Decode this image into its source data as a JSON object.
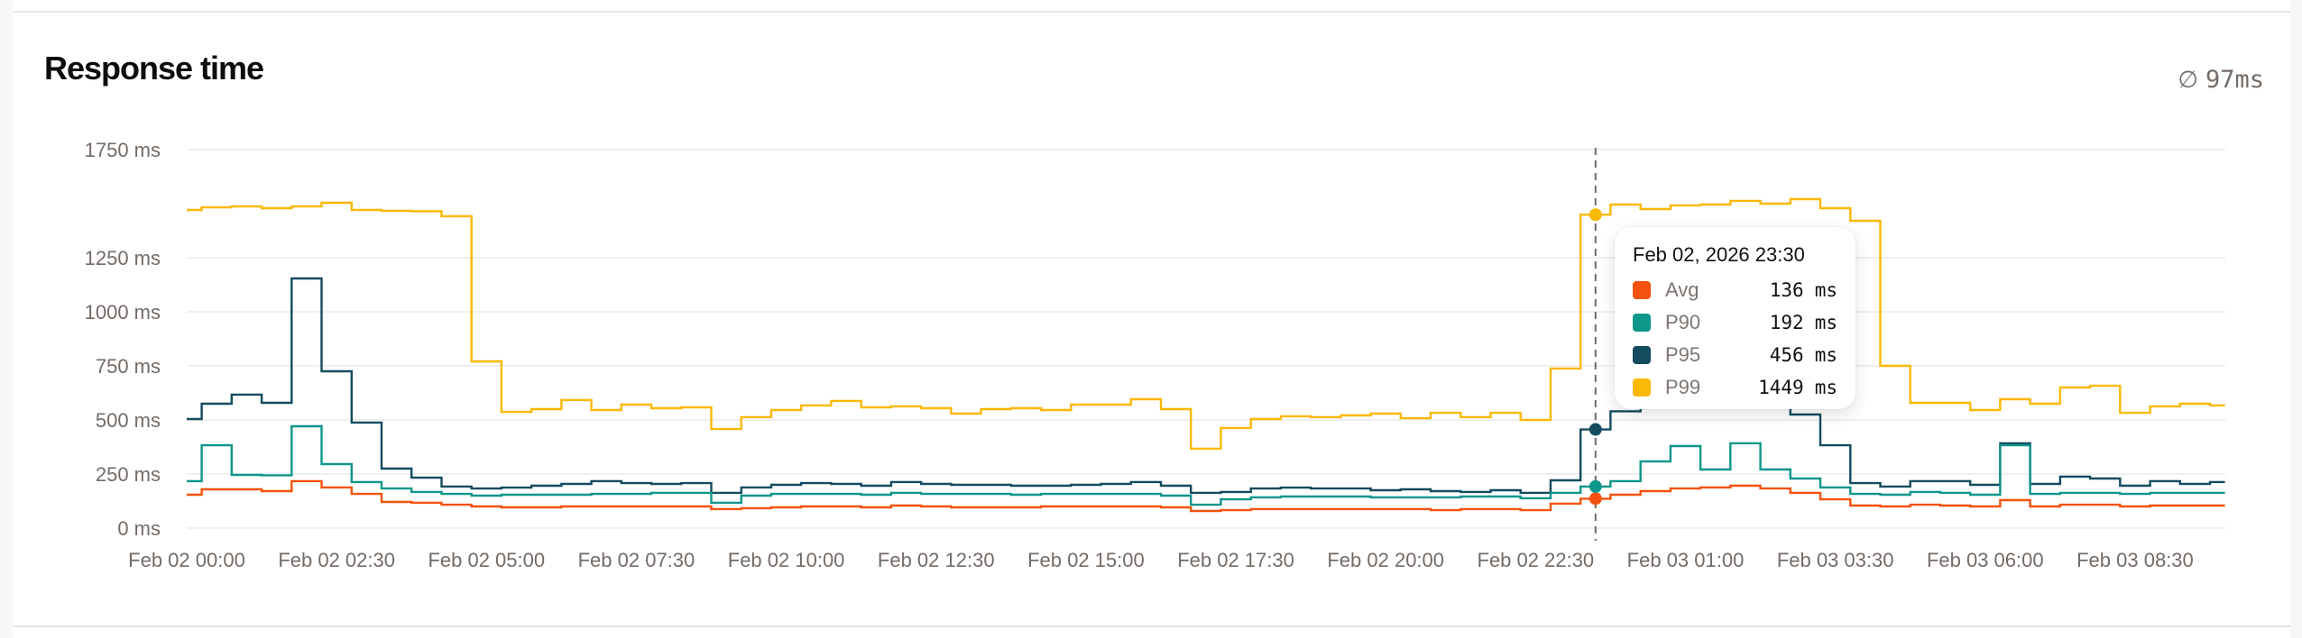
{
  "card": {
    "title": "Response time",
    "summary_symbol": "∅",
    "summary_value": "97ms"
  },
  "colors": {
    "avg": "#F4520E",
    "p90": "#0E968A",
    "p95": "#134B5F",
    "p99": "#FBB805",
    "grid": "#EFEFEF",
    "axis_text": "#736B66",
    "crosshair": "#6B6B6B"
  },
  "tooltip": {
    "title": "Feb 02, 2026 23:30",
    "rows": [
      {
        "name": "Avg",
        "value": "136",
        "unit": "ms",
        "color": "#F4520E"
      },
      {
        "name": "P90",
        "value": "192",
        "unit": "ms",
        "color": "#0E968A"
      },
      {
        "name": "P95",
        "value": "456",
        "unit": "ms",
        "color": "#134B5F"
      },
      {
        "name": "P99",
        "value": "1449",
        "unit": "ms",
        "color": "#FBB805"
      }
    ]
  },
  "chart_data": {
    "type": "line",
    "step": true,
    "title": "Response time",
    "xlabel": "",
    "ylabel": "",
    "ylim": [
      0,
      1750
    ],
    "y_ticks": [
      0,
      250,
      500,
      750,
      1000,
      1250,
      1750
    ],
    "y_tick_labels": [
      "0 ms",
      "250 ms",
      "500 ms",
      "750 ms",
      "1000 ms",
      "1250 ms",
      "1750 ms"
    ],
    "x_tick_labels": [
      "Feb 02 00:00",
      "Feb 02 02:30",
      "Feb 02 05:00",
      "Feb 02 07:30",
      "Feb 02 10:00",
      "Feb 02 12:30",
      "Feb 02 15:00",
      "Feb 02 17:30",
      "Feb 02 20:00",
      "Feb 02 22:30",
      "Feb 03 01:00",
      "Feb 03 03:30",
      "Feb 03 06:00",
      "Feb 03 08:30"
    ],
    "x_tick_every": 5,
    "interval": "30 min",
    "x_start": "Feb 02 00:00",
    "grid": true,
    "legend": "tooltip",
    "hover_index": 47,
    "series": [
      {
        "name": "Avg",
        "color": "#F4520E",
        "values": [
          154,
          179,
          179,
          171,
          217,
          188,
          158,
          121,
          117,
          108,
          100,
          96,
          96,
          100,
          100,
          100,
          100,
          100,
          88,
          92,
          96,
          100,
          100,
          96,
          104,
          100,
          96,
          96,
          96,
          100,
          100,
          100,
          100,
          96,
          79,
          83,
          88,
          88,
          88,
          88,
          88,
          88,
          83,
          88,
          88,
          83,
          113,
          136,
          154,
          171,
          183,
          188,
          196,
          183,
          163,
          133,
          104,
          100,
          108,
          104,
          100,
          129,
          100,
          108,
          108,
          100,
          104,
          104,
          104
        ]
      },
      {
        "name": "P90",
        "color": "#0E968A",
        "values": [
          217,
          383,
          246,
          244,
          471,
          296,
          213,
          183,
          167,
          158,
          150,
          154,
          154,
          154,
          158,
          158,
          163,
          163,
          117,
          150,
          158,
          158,
          158,
          154,
          163,
          158,
          158,
          158,
          154,
          158,
          158,
          158,
          158,
          150,
          108,
          133,
          142,
          146,
          146,
          146,
          142,
          142,
          142,
          146,
          146,
          138,
          163,
          192,
          217,
          308,
          379,
          271,
          392,
          271,
          229,
          188,
          158,
          154,
          167,
          163,
          154,
          383,
          158,
          163,
          163,
          158,
          163,
          163,
          163
        ]
      },
      {
        "name": "P95",
        "color": "#134B5F",
        "values": [
          504,
          575,
          617,
          579,
          1154,
          725,
          488,
          275,
          233,
          192,
          183,
          187,
          196,
          204,
          217,
          208,
          204,
          208,
          163,
          188,
          200,
          208,
          204,
          196,
          213,
          204,
          200,
          200,
          196,
          196,
          200,
          204,
          213,
          196,
          163,
          167,
          183,
          187,
          183,
          183,
          175,
          179,
          171,
          167,
          175,
          163,
          221,
          456,
          540,
          560,
          575,
          580,
          570,
          555,
          525,
          383,
          208,
          192,
          217,
          217,
          200,
          392,
          204,
          238,
          229,
          196,
          217,
          204,
          213
        ]
      },
      {
        "name": "P99",
        "color": "#FBB805",
        "values": [
          1471,
          1483,
          1487,
          1479,
          1487,
          1504,
          1471,
          1467,
          1465,
          1442,
          771,
          537,
          550,
          592,
          546,
          571,
          554,
          558,
          458,
          513,
          546,
          567,
          588,
          558,
          563,
          554,
          529,
          550,
          554,
          546,
          571,
          571,
          596,
          550,
          367,
          463,
          504,
          517,
          513,
          521,
          529,
          508,
          533,
          513,
          533,
          500,
          738,
          1449,
          1496,
          1475,
          1492,
          1496,
          1513,
          1500,
          1521,
          1479,
          1421,
          750,
          579,
          579,
          546,
          596,
          575,
          650,
          658,
          533,
          563,
          575,
          567
        ]
      }
    ]
  }
}
